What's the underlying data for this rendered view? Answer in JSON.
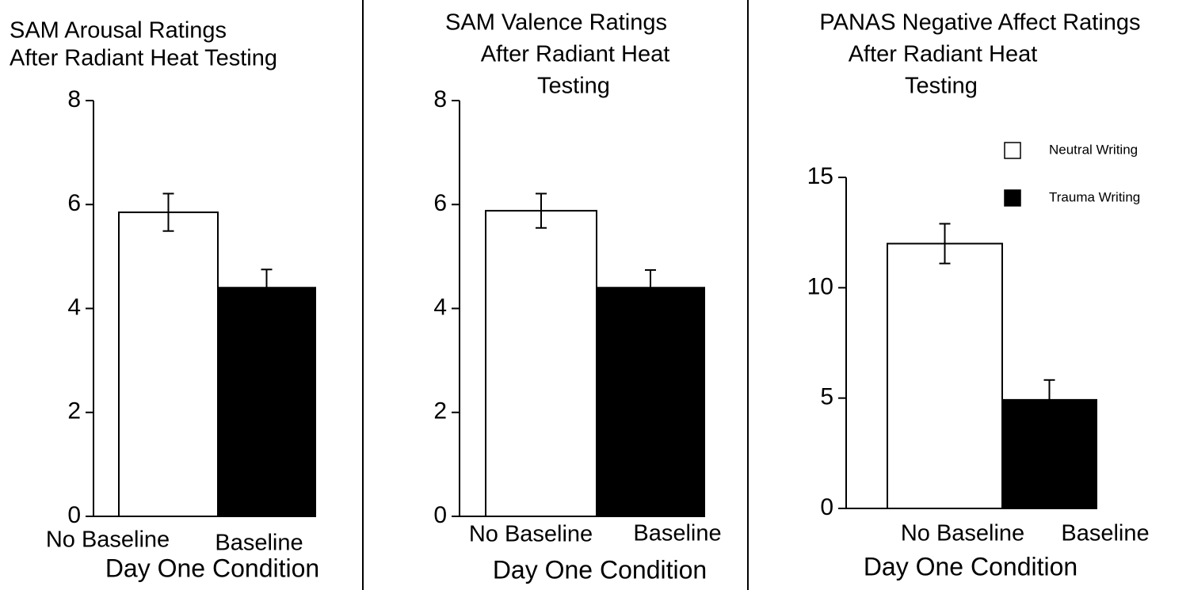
{
  "chart_data": [
    {
      "type": "bar",
      "title": [
        "SAM Arousal Ratings",
        "After Radiant Heat Testing"
      ],
      "categories": [
        "No Baseline",
        "Baseline"
      ],
      "values": [
        5.85,
        4.4
      ],
      "errors": [
        0.36,
        0.35
      ],
      "colors": [
        "#ffffff",
        "#000000"
      ],
      "xlabel": "Day One Condition",
      "ylim": [
        0,
        8
      ],
      "yticks": [
        0,
        2,
        4,
        6,
        8
      ]
    },
    {
      "type": "bar",
      "title": [
        "SAM Valence Ratings",
        "After Radiant Heat",
        "Testing"
      ],
      "categories": [
        "No Baseline",
        "Baseline"
      ],
      "values": [
        5.88,
        4.4
      ],
      "errors": [
        0.33,
        0.34
      ],
      "colors": [
        "#ffffff",
        "#000000"
      ],
      "xlabel": "Day One Condition",
      "ylim": [
        0,
        8
      ],
      "yticks": [
        0,
        2,
        4,
        6,
        8
      ]
    },
    {
      "type": "bar",
      "title": [
        "PANAS Negative Affect Ratings",
        "After Radiant Heat",
        "Testing"
      ],
      "categories": [
        "No Baseline",
        "Baseline"
      ],
      "values": [
        12.0,
        4.92
      ],
      "errors": [
        0.9,
        0.9
      ],
      "colors": [
        "#ffffff",
        "#000000"
      ],
      "xlabel": "Day One Condition",
      "ylim": [
        0,
        15
      ],
      "yticks": [
        0,
        5,
        10,
        15
      ],
      "legend": [
        {
          "name": "Neutral Writing",
          "color": "#ffffff"
        },
        {
          "name": "Trauma Writing",
          "color": "#000000"
        }
      ]
    }
  ]
}
